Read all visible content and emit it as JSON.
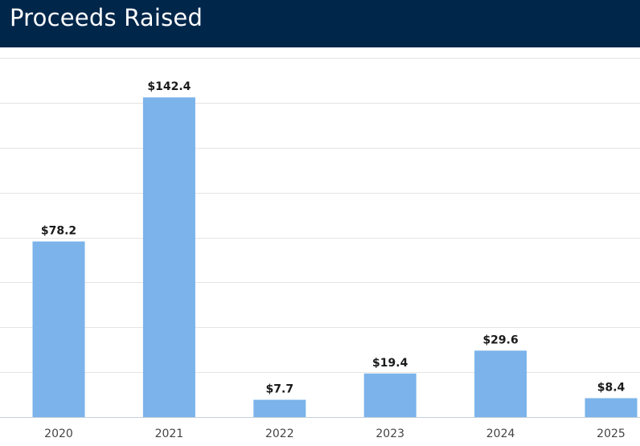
{
  "header": {
    "title": "Proceeds Raised"
  },
  "colors": {
    "header_background": "#00264a",
    "bar": "#7bb3ea",
    "gridline": "#e4e4e4",
    "baseline": "#c4d0dc",
    "label_text": "#1a1a1a",
    "tick_text": "#444444"
  },
  "chart_data": {
    "type": "bar",
    "categories": [
      "2020",
      "2021",
      "2022",
      "2023",
      "2024",
      "2025"
    ],
    "values": [
      78.2,
      142.4,
      7.7,
      19.4,
      29.6,
      8.4
    ],
    "data_labels": [
      "$78.2",
      "$142.4",
      "$7.7",
      "$19.4",
      "$29.6",
      "$8.4"
    ],
    "title": "Proceeds Raised",
    "xlabel": "",
    "ylabel": "",
    "ylim": [
      0,
      160
    ],
    "ytick_step": 20,
    "grid": true,
    "legend": "none"
  }
}
